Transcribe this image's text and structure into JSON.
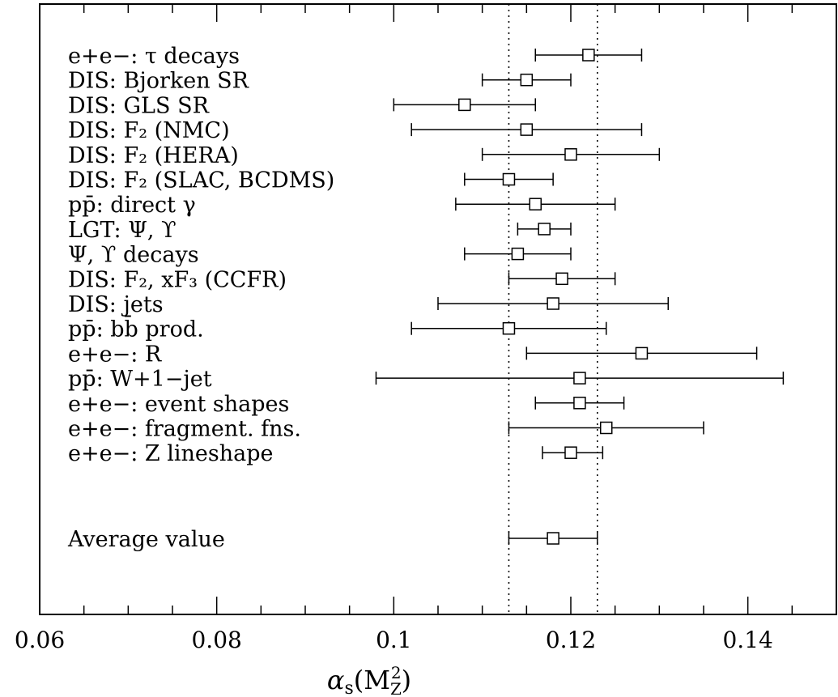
{
  "chart_data": {
    "type": "scatter",
    "subtype": "error-bar",
    "title": "",
    "xlabel": "αs(MZ²)",
    "xlabel_parts": {
      "symbol": "α",
      "sub": "s",
      "open": "(M",
      "sub2": "Z",
      "sup2": "2",
      "close": ")"
    },
    "xlim": [
      0.06,
      0.15
    ],
    "xticks": [
      {
        "value": 0.06,
        "label": "0.06"
      },
      {
        "value": 0.08,
        "label": "0.08"
      },
      {
        "value": 0.1,
        "label": "0.1"
      },
      {
        "value": 0.12,
        "label": "0.12"
      },
      {
        "value": 0.14,
        "label": "0.14"
      }
    ],
    "minor_tick_step": 0.005,
    "grid": false,
    "reference_band": {
      "low": 0.113,
      "high": 0.123,
      "style": "dotted"
    },
    "marker": "open-square",
    "points": [
      {
        "label": "e+e−: τ decays",
        "value": 0.122,
        "low": 0.116,
        "high": 0.128
      },
      {
        "label": "DIS: Bjorken SR",
        "value": 0.115,
        "low": 0.11,
        "high": 0.12
      },
      {
        "label": "DIS: GLS SR",
        "value": 0.108,
        "low": 0.1,
        "high": 0.116
      },
      {
        "label": "DIS: F₂ (NMC)",
        "value": 0.115,
        "low": 0.102,
        "high": 0.128
      },
      {
        "label": "DIS: F₂ (HERA)",
        "value": 0.12,
        "low": 0.11,
        "high": 0.13
      },
      {
        "label": "DIS: F₂ (SLAC, BCDMS)",
        "value": 0.113,
        "low": 0.108,
        "high": 0.118
      },
      {
        "label": "pp̄: direct γ",
        "value": 0.116,
        "low": 0.107,
        "high": 0.125
      },
      {
        "label": "LGT: Ψ, ϒ",
        "value": 0.117,
        "low": 0.114,
        "high": 0.12
      },
      {
        "label": "Ψ, ϒ decays",
        "value": 0.114,
        "low": 0.108,
        "high": 0.12
      },
      {
        "label": "DIS: F₂, xF₃ (CCFR)",
        "value": 0.119,
        "low": 0.113,
        "high": 0.125
      },
      {
        "label": "DIS: jets",
        "value": 0.118,
        "low": 0.105,
        "high": 0.131
      },
      {
        "label": "pp̄: bb̄ prod.",
        "value": 0.113,
        "low": 0.102,
        "high": 0.124
      },
      {
        "label": "e+e−: R",
        "value": 0.128,
        "low": 0.115,
        "high": 0.141
      },
      {
        "label": "pp̄: W+1−jet",
        "value": 0.121,
        "low": 0.098,
        "high": 0.144
      },
      {
        "label": "e+e−: event shapes",
        "value": 0.121,
        "low": 0.116,
        "high": 0.126
      },
      {
        "label": "e+e−: fragment. fns.",
        "value": 0.124,
        "low": 0.113,
        "high": 0.135
      },
      {
        "label": "e+e−: Z lineshape",
        "value": 0.12,
        "low": 0.1168,
        "high": 0.1236
      }
    ],
    "average": {
      "label": "Average value",
      "value": 0.118,
      "low": 0.113,
      "high": 0.123
    }
  }
}
